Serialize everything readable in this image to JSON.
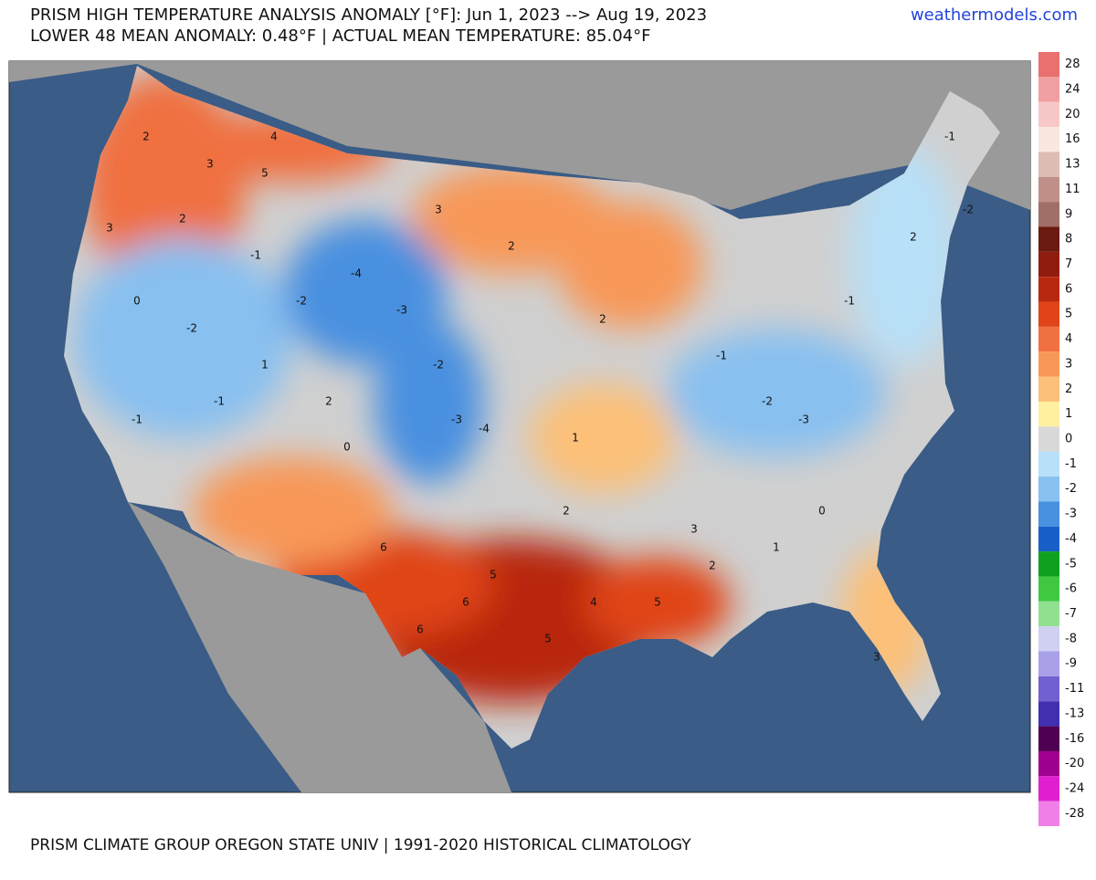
{
  "header": {
    "title": "PRISM HIGH TEMPERATURE ANALYSIS ANOMALY [°F]: Jun 1, 2023 --> Aug 19, 2023",
    "subtitle": "LOWER 48 MEAN ANOMALY: 0.48°F | ACTUAL MEAN TEMPERATURE: 85.04°F",
    "source": "weathermodels.com"
  },
  "footer": "PRISM CLIMATE GROUP OREGON STATE UNIV | 1991-2020 HISTORICAL CLIMATOLOGY",
  "colorbar": {
    "labels": [
      "28",
      "24",
      "20",
      "16",
      "13",
      "11",
      "9",
      "8",
      "7",
      "6",
      "5",
      "4",
      "3",
      "2",
      "1",
      "0",
      "-1",
      "-2",
      "-3",
      "-4",
      "-5",
      "-6",
      "-7",
      "-8",
      "-9",
      "-11",
      "-13",
      "-16",
      "-20",
      "-24",
      "-28"
    ],
    "colors": [
      "#e8706e",
      "#f0a0a0",
      "#f8c8c8",
      "#f8e8e0",
      "#dcbcb4",
      "#c09088",
      "#a07068",
      "#6a1a10",
      "#901c10",
      "#b82810",
      "#e04418",
      "#f07040",
      "#f89858",
      "#fcc078",
      "#fef0a0",
      "#d8d8d8",
      "#b8e0f8",
      "#88c0f0",
      "#4890e0",
      "#1860c8",
      "#10a020",
      "#40c840",
      "#90e090",
      "#d0d0f0",
      "#a8a0e8",
      "#7060d0",
      "#4030b0",
      "#500050",
      "#a00090",
      "#e020d0",
      "#f080e8"
    ]
  },
  "map_labels": [
    "2",
    "3",
    "4",
    "5",
    "3",
    "2",
    "-1",
    "-2",
    "-4",
    "-3",
    "-2",
    "0",
    "1",
    "-1",
    "2",
    "3",
    "2",
    "-2",
    "-3",
    "-4",
    "1",
    "2",
    "6",
    "5",
    "6",
    "6",
    "5",
    "4",
    "5",
    "-1",
    "-2",
    "-3",
    "-1",
    "0",
    "1",
    "2",
    "3",
    "2",
    "-1",
    "-2",
    "0",
    "-1",
    "2",
    "3"
  ]
}
